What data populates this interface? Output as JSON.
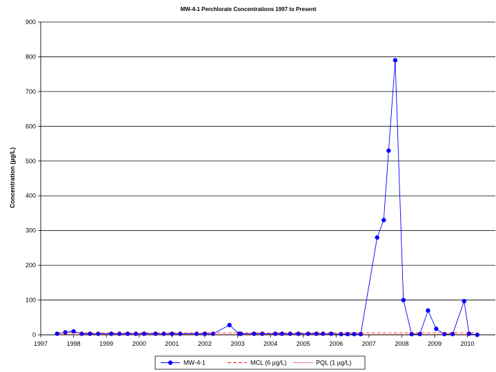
{
  "chart_data": {
    "type": "line",
    "title": "MW-4-1 Perchlorate Concentrations 1997 to Present",
    "xlabel": "",
    "ylabel": "Concentration (µg/L)",
    "xlim": [
      1997,
      2010.85
    ],
    "ylim": [
      0,
      900
    ],
    "x_ticks": [
      1997,
      1998,
      1999,
      2000,
      2001,
      2002,
      2003,
      2004,
      2005,
      2006,
      2007,
      2008,
      2009,
      2010
    ],
    "x_tick_labels": [
      "1997",
      "1998",
      "1999",
      "2000",
      "2001",
      "2002",
      "2003",
      "2004",
      "2005",
      "2006",
      "2007",
      "2008",
      "2009",
      "2010"
    ],
    "y_ticks": [
      0,
      100,
      200,
      300,
      400,
      500,
      600,
      700,
      800,
      900
    ],
    "y_tick_labels": [
      "0",
      "100",
      "200",
      "300",
      "400",
      "500",
      "600",
      "700",
      "800",
      "900"
    ],
    "grid": "horizontal",
    "legend_position": "bottom",
    "series": [
      {
        "name": "MW-4-1",
        "color": "#0000ff",
        "style": "line-markers",
        "points": [
          [
            1997.5,
            3
          ],
          [
            1997.75,
            7
          ],
          [
            1998.0,
            10
          ],
          [
            1998.25,
            3
          ],
          [
            1998.5,
            3
          ],
          [
            1998.75,
            3
          ],
          [
            1999.15,
            3
          ],
          [
            1999.4,
            3
          ],
          [
            1999.65,
            3
          ],
          [
            1999.9,
            3
          ],
          [
            2000.15,
            3
          ],
          [
            2000.5,
            3
          ],
          [
            2000.75,
            3
          ],
          [
            2001.0,
            3
          ],
          [
            2001.25,
            3
          ],
          [
            2001.75,
            3
          ],
          [
            2002.0,
            3
          ],
          [
            2002.25,
            3
          ],
          [
            2002.75,
            28
          ],
          [
            2003.05,
            3
          ],
          [
            2003.1,
            3
          ],
          [
            2003.5,
            3
          ],
          [
            2003.75,
            3
          ],
          [
            2004.15,
            3
          ],
          [
            2004.35,
            3
          ],
          [
            2004.6,
            3
          ],
          [
            2004.85,
            3
          ],
          [
            2005.15,
            3
          ],
          [
            2005.4,
            3
          ],
          [
            2005.6,
            3
          ],
          [
            2005.85,
            3
          ],
          [
            2006.15,
            2
          ],
          [
            2006.35,
            2
          ],
          [
            2006.55,
            2
          ],
          [
            2006.75,
            2
          ],
          [
            2007.25,
            280
          ],
          [
            2007.45,
            330
          ],
          [
            2007.6,
            530
          ],
          [
            2007.8,
            790
          ],
          [
            2008.05,
            100
          ],
          [
            2008.3,
            2
          ],
          [
            2008.55,
            2
          ],
          [
            2008.8,
            70
          ],
          [
            2009.05,
            17
          ],
          [
            2009.3,
            2
          ],
          [
            2009.55,
            2
          ],
          [
            2009.9,
            97
          ],
          [
            2010.05,
            3
          ],
          [
            2010.3,
            0
          ]
        ]
      },
      {
        "name": "MCL (6 µg/L)",
        "color": "#ff0000",
        "style": "dash",
        "points": [
          [
            1997.5,
            6
          ],
          [
            2010.3,
            6
          ]
        ]
      },
      {
        "name": "PQL (1 µg/L)",
        "color": "#cc0000",
        "style": "dot",
        "points": [
          [
            1997.5,
            1
          ],
          [
            2010.3,
            1
          ]
        ]
      }
    ]
  }
}
